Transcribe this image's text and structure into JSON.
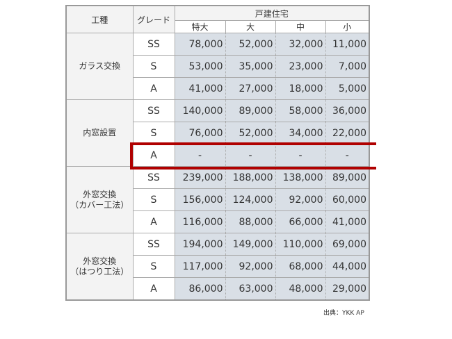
{
  "header": {
    "kind": "工種",
    "grade": "グレード",
    "group": "戸建住宅",
    "sizes": [
      "特大",
      "大",
      "中",
      "小"
    ]
  },
  "groups": [
    {
      "kind": "ガラス交換",
      "rows": [
        {
          "grade": "SS",
          "values": [
            "78,000",
            "52,000",
            "32,000",
            "11,000"
          ]
        },
        {
          "grade": "S",
          "values": [
            "53,000",
            "35,000",
            "23,000",
            "7,000"
          ]
        },
        {
          "grade": "A",
          "values": [
            "41,000",
            "27,000",
            "18,000",
            "5,000"
          ]
        }
      ]
    },
    {
      "kind": "内窓設置",
      "rows": [
        {
          "grade": "SS",
          "values": [
            "140,000",
            "89,000",
            "58,000",
            "36,000"
          ]
        },
        {
          "grade": "S",
          "values": [
            "76,000",
            "52,000",
            "34,000",
            "22,000"
          ]
        },
        {
          "grade": "A",
          "values": [
            "-",
            "-",
            "-",
            "-"
          ],
          "highlighted": true
        }
      ]
    },
    {
      "kind": "外窓交換\n（カバー工法）",
      "rows": [
        {
          "grade": "SS",
          "values": [
            "239,000",
            "188,000",
            "138,000",
            "89,000"
          ]
        },
        {
          "grade": "S",
          "values": [
            "156,000",
            "124,000",
            "92,000",
            "60,000"
          ]
        },
        {
          "grade": "A",
          "values": [
            "116,000",
            "88,000",
            "66,000",
            "41,000"
          ]
        }
      ]
    },
    {
      "kind": "外窓交換\n（はつり工法）",
      "rows": [
        {
          "grade": "SS",
          "values": [
            "194,000",
            "149,000",
            "110,000",
            "69,000"
          ]
        },
        {
          "grade": "S",
          "values": [
            "117,000",
            "92,000",
            "68,000",
            "44,000"
          ]
        },
        {
          "grade": "A",
          "values": [
            "86,000",
            "63,000",
            "48,000",
            "29,000"
          ]
        }
      ]
    }
  ],
  "highlight_color": "#b00000",
  "source": "出典：YKK AP"
}
